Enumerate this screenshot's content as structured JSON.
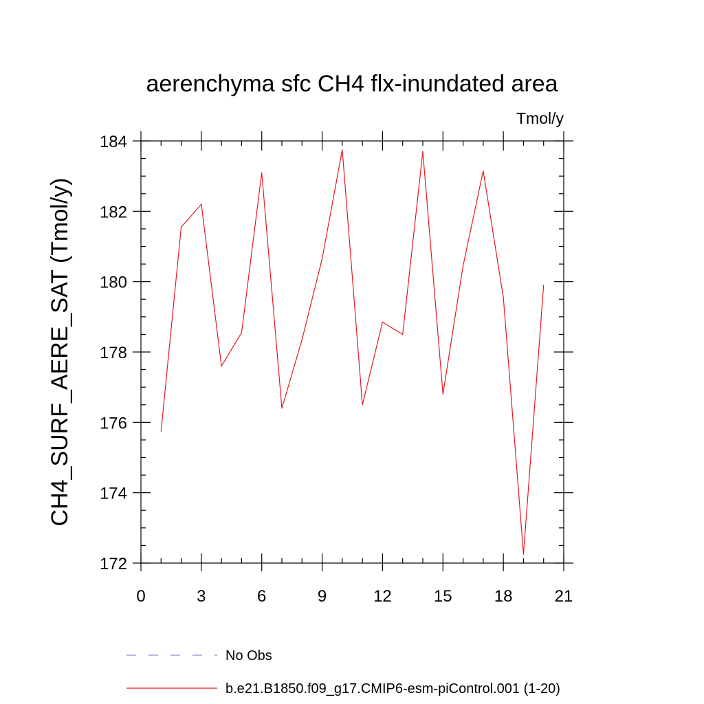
{
  "chart_data": {
    "type": "line",
    "title": "aerenchyma sfc CH4 flx-inundated area",
    "units_label": "Tmol/y",
    "xlabel": "",
    "ylabel": "CH4_SURF_AERE_SAT  (Tmol/y)",
    "xlim": [
      0,
      21
    ],
    "ylim": [
      172,
      184
    ],
    "x_ticks": [
      0,
      3,
      6,
      9,
      12,
      15,
      18,
      21
    ],
    "y_ticks": [
      172,
      174,
      176,
      178,
      180,
      182,
      184
    ],
    "grid": false,
    "legend_position": "bottom",
    "series": [
      {
        "name": "b.e21.B1850.f09_g17.CMIP6-esm-piControl.001 (1-20)",
        "color": "#e8161c",
        "style": "solid",
        "x": [
          1,
          2,
          3,
          4,
          5,
          6,
          7,
          8,
          9,
          10,
          11,
          12,
          13,
          14,
          15,
          16,
          17,
          18,
          19,
          20
        ],
        "y": [
          175.75,
          181.55,
          182.2,
          177.6,
          178.55,
          183.1,
          176.4,
          178.35,
          180.65,
          183.75,
          176.5,
          178.85,
          178.5,
          183.7,
          176.8,
          180.45,
          183.15,
          179.55,
          172.25,
          179.9
        ]
      }
    ],
    "legend": [
      {
        "label": "No Obs",
        "color": "#8a8adb",
        "style": "dashed"
      },
      {
        "label": "b.e21.B1850.f09_g17.CMIP6-esm-piControl.001 (1-20)",
        "color": "#e8161c",
        "style": "solid"
      }
    ]
  }
}
